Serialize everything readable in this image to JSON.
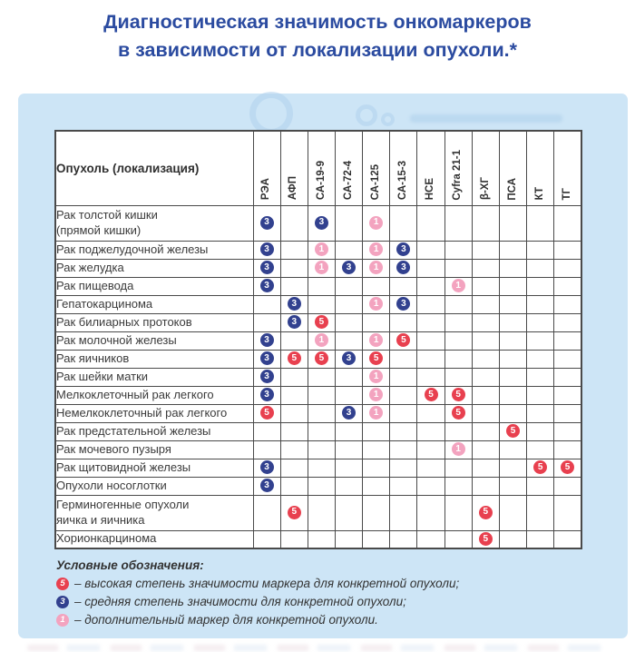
{
  "title": {
    "line1": "Диагностическая значимость онкомаркеров",
    "line2": "в зависимости от локализации опухоли.*"
  },
  "table": {
    "corner_header": "Опухоль (локализация)",
    "marker_columns": [
      "РЭА",
      "АФП",
      "СА-19-9",
      "СА-72-4",
      "СА-125",
      "СА-15-3",
      "НСЕ",
      "Cyfra 21-1",
      "β-ХГ",
      "ПСА",
      "КТ",
      "ТГ"
    ],
    "rows": [
      {
        "label_lines": [
          "Рак толстой кишки",
          "(прямой кишки)"
        ],
        "values": [
          3,
          null,
          3,
          null,
          1,
          null,
          null,
          null,
          null,
          null,
          null,
          null
        ]
      },
      {
        "label": "Рак поджелудочной железы",
        "values": [
          3,
          null,
          1,
          null,
          1,
          3,
          null,
          null,
          null,
          null,
          null,
          null
        ]
      },
      {
        "label": "Рак желудка",
        "values": [
          3,
          null,
          1,
          3,
          1,
          3,
          null,
          null,
          null,
          null,
          null,
          null
        ]
      },
      {
        "label": "Рак пищевода",
        "values": [
          3,
          null,
          null,
          null,
          null,
          null,
          null,
          1,
          null,
          null,
          null,
          null
        ]
      },
      {
        "label": "Гепатокарцинома",
        "values": [
          null,
          3,
          null,
          null,
          1,
          3,
          null,
          null,
          null,
          null,
          null,
          null
        ]
      },
      {
        "label": "Рак билиарных протоков",
        "values": [
          null,
          3,
          5,
          null,
          null,
          null,
          null,
          null,
          null,
          null,
          null,
          null
        ]
      },
      {
        "label": "Рак молочной железы",
        "values": [
          3,
          null,
          1,
          null,
          1,
          5,
          null,
          null,
          null,
          null,
          null,
          null
        ]
      },
      {
        "label": "Рак яичников",
        "values": [
          3,
          5,
          5,
          3,
          5,
          null,
          null,
          null,
          null,
          null,
          null,
          null
        ]
      },
      {
        "label": "Рак шейки матки",
        "values": [
          3,
          null,
          null,
          null,
          1,
          null,
          null,
          null,
          null,
          null,
          null,
          null
        ]
      },
      {
        "label": "Мелкоклеточный рак легкого",
        "values": [
          3,
          null,
          null,
          null,
          1,
          null,
          5,
          5,
          null,
          null,
          null,
          null
        ]
      },
      {
        "label": "Немелкоклеточный рак легкого",
        "values": [
          5,
          null,
          null,
          3,
          1,
          null,
          null,
          5,
          null,
          null,
          null,
          null
        ]
      },
      {
        "label": "Рак предстательной железы",
        "values": [
          null,
          null,
          null,
          null,
          null,
          null,
          null,
          null,
          null,
          5,
          null,
          null
        ]
      },
      {
        "label": "Рак мочевого пузыря",
        "values": [
          null,
          null,
          null,
          null,
          null,
          null,
          null,
          1,
          null,
          null,
          null,
          null
        ]
      },
      {
        "label": "Рак щитовидной железы",
        "values": [
          3,
          null,
          null,
          null,
          null,
          null,
          null,
          null,
          null,
          null,
          5,
          5
        ]
      },
      {
        "label": "Опухоли носоглотки",
        "values": [
          3,
          null,
          null,
          null,
          null,
          null,
          null,
          null,
          null,
          null,
          null,
          null
        ]
      },
      {
        "label_lines": [
          "Герминогенные опухоли",
          "яичка и яичника"
        ],
        "values": [
          null,
          5,
          null,
          null,
          null,
          null,
          null,
          null,
          5,
          null,
          null,
          null
        ]
      },
      {
        "label": "Хорионкарцинома",
        "values": [
          null,
          null,
          null,
          null,
          null,
          null,
          null,
          null,
          5,
          null,
          null,
          null
        ]
      }
    ]
  },
  "legend": {
    "heading": "Условные обозначения:",
    "items": [
      {
        "value": 5,
        "text": "– высокая степень значимости маркера для конкретной опухоли;"
      },
      {
        "value": 3,
        "text": "– средняя степень значимости для конкретной опухоли;"
      },
      {
        "value": 1,
        "text": "– дополнительный маркер для конкретной опухоли."
      }
    ]
  },
  "marker_colors": {
    "5": "#e8404f",
    "3": "#32418f",
    "1": "#f3a3bf"
  },
  "theme": {
    "panel_bg": "#cde5f6",
    "title_color": "#2b4ba0",
    "border_color": "#4a4a4a"
  }
}
